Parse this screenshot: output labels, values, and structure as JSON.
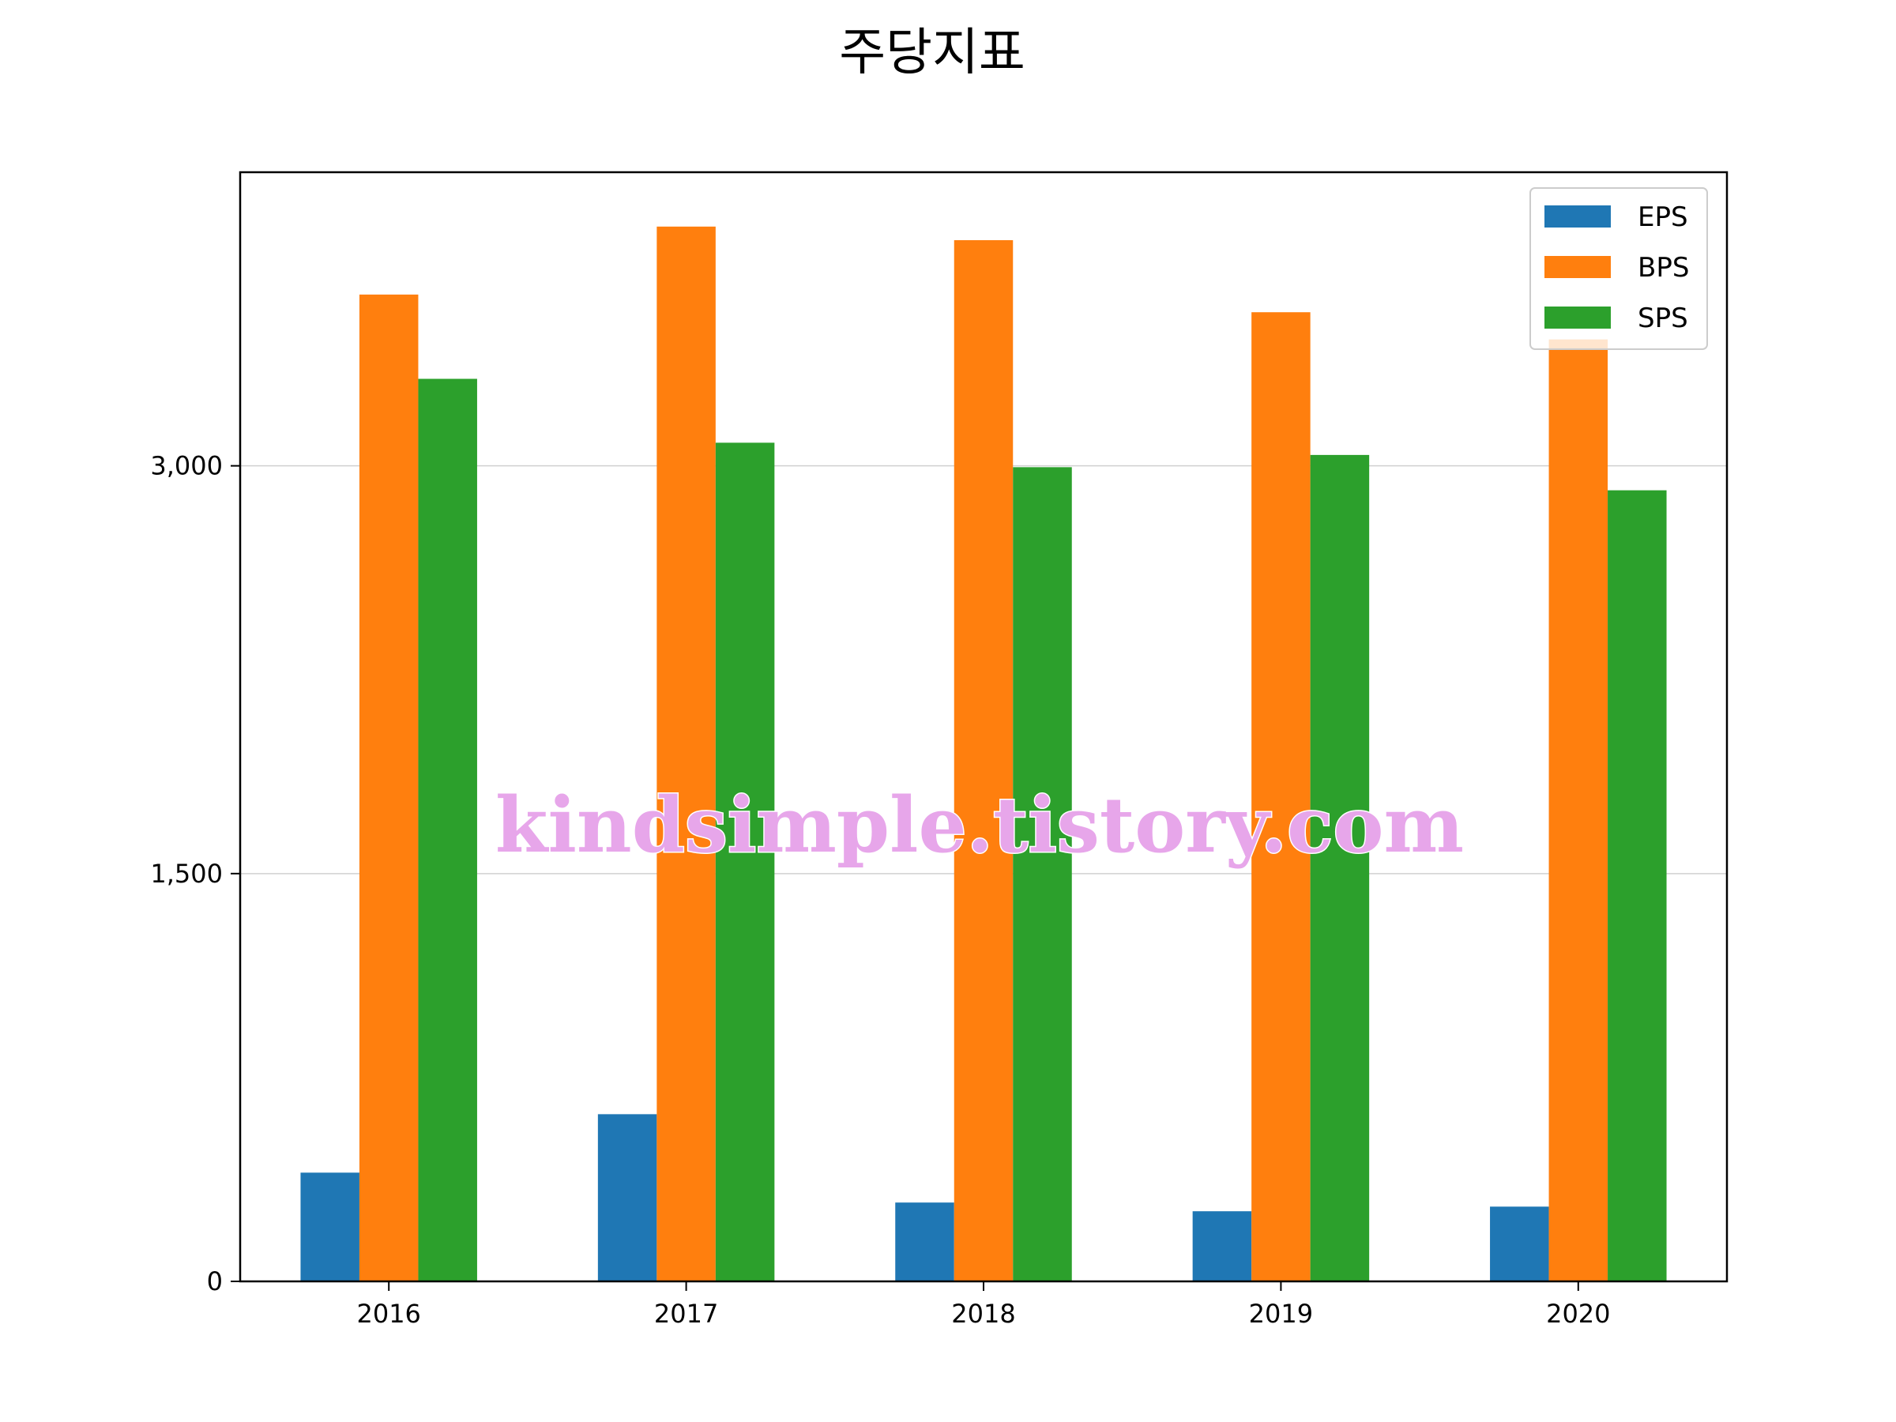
{
  "chart_data": {
    "type": "bar",
    "title": "주당지표",
    "xlabel": "",
    "ylabel": "",
    "categories": [
      "2016",
      "2017",
      "2018",
      "2019",
      "2020"
    ],
    "series": [
      {
        "name": "EPS",
        "color": "#1f77b4",
        "values": [
          400,
          615,
          290,
          258,
          275
        ]
      },
      {
        "name": "BPS",
        "color": "#ff7f0e",
        "values": [
          3630,
          3880,
          3830,
          3565,
          3465
        ]
      },
      {
        "name": "SPS",
        "color": "#2ca02c",
        "values": [
          3320,
          3085,
          2995,
          3040,
          2910
        ]
      }
    ],
    "ylim": [
      0,
      4080
    ],
    "yticks": [
      0,
      1500,
      3000
    ],
    "ytick_labels": [
      "0",
      "1,500",
      "3,000"
    ],
    "grid": "y",
    "legend_position": "upper right"
  },
  "watermark": {
    "text": "kindsimple.tistory.com"
  }
}
